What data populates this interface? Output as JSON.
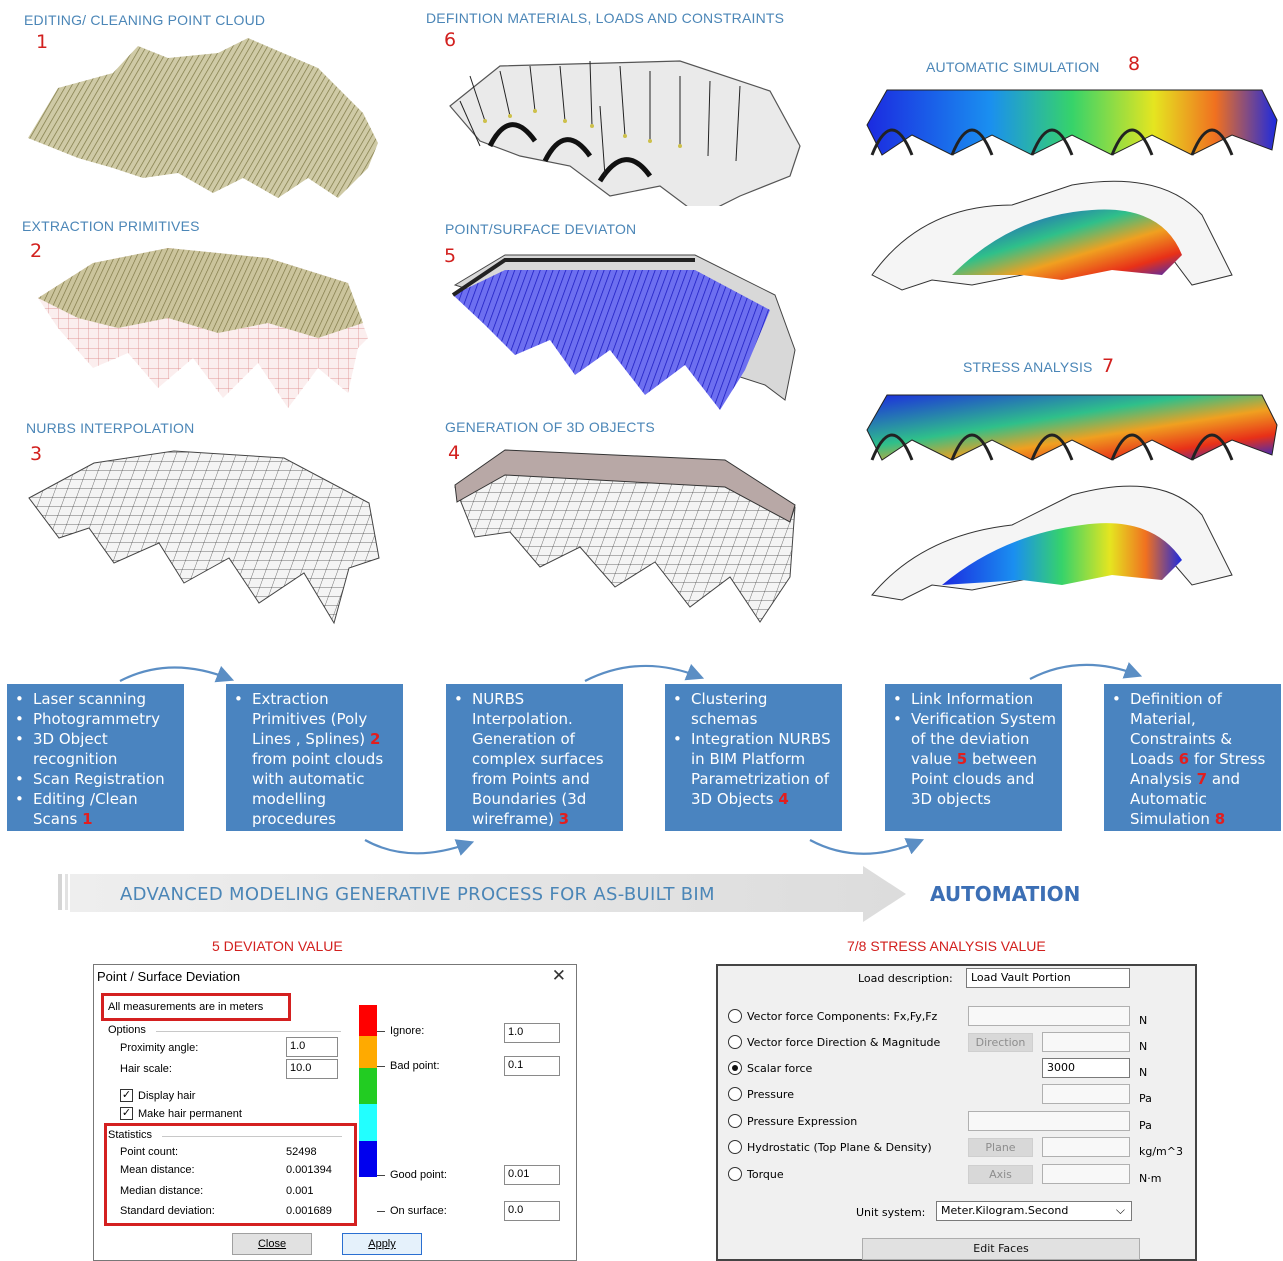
{
  "steps": {
    "s1": {
      "title": "EDITING/ CLEANING POINT CLOUD",
      "num": "1"
    },
    "s2": {
      "title": "EXTRACTION PRIMITIVES",
      "num": "2"
    },
    "s3": {
      "title": "NURBS INTERPOLATION",
      "num": "3"
    },
    "s6": {
      "title": "DEFINTION MATERIALS, LOADS AND CONSTRAINTS",
      "num": "6"
    },
    "s5": {
      "title": "POINT/SURFACE DEVIATON",
      "num": "5"
    },
    "s4": {
      "title": "GENERATION OF 3D OBJECTS",
      "num": "4"
    },
    "s8": {
      "title": "AUTOMATIC SIMULATION",
      "num": "8"
    },
    "s7": {
      "title": "STRESS ANALYSIS",
      "num": "7"
    }
  },
  "flow": {
    "b1": {
      "items": [
        "Laser scanning",
        "Photogrammetry",
        "3D Object recognition",
        "Scan Registration",
        "Editing /Clean Scans"
      ],
      "ref": "1"
    },
    "b2": {
      "text": "Extraction Primitives (Poly Lines , Splines)",
      "ref": "2",
      "text2": "from point clouds with automatic modelling procedures"
    },
    "b3": {
      "text": "NURBS Interpolation. Generation of complex surfaces from Points and Boundaries (3d wireframe)",
      "ref": "3"
    },
    "b4": {
      "text1": "Clustering schemas",
      "text2": "Integration NURBS in BIM Platform Parametrization of 3D Objects",
      "ref": "4"
    },
    "b5": {
      "text1": "Link Information",
      "text2": "Verification System of the deviation value",
      "ref": "5",
      "text3": "between Point clouds and 3D objects"
    },
    "b6": {
      "text1": "Definition of Material, Constraints & Loads",
      "ref1": "6",
      "text2": "for Stress Analysis",
      "ref2": "7",
      "text3": "and Automatic Simulation",
      "ref3": "8"
    }
  },
  "banner": {
    "text": "ADVANCED MODELING GENERATIVE PROCESS FOR AS-BUILT BIM",
    "automation": "AUTOMATION"
  },
  "deviation_title": "5 DEVIATON VALUE",
  "stress_title": "7/8 STRESS ANALYSIS VALUE",
  "deviation": {
    "title": "Point / Surface Deviation",
    "close": "✕",
    "note": "All measurements are in meters",
    "options": "Options",
    "proximity_label": "Proximity angle:",
    "proximity_value": "1.0",
    "hair_label": "Hair scale:",
    "hair_value": "10.0",
    "display_hair": "Display hair",
    "permanent_hair": "Make hair permanent",
    "statistics": "Statistics",
    "stats": [
      {
        "label": "Point count:",
        "value": "52498"
      },
      {
        "label": "Mean distance:",
        "value": "0.001394"
      },
      {
        "label": "Median distance:",
        "value": "0.001"
      },
      {
        "label": "Standard deviation:",
        "value": "0.001689"
      }
    ],
    "ignore_label": "Ignore:",
    "ignore_value": "1.0",
    "bad_label": "Bad point:",
    "bad_value": "0.1",
    "good_label": "Good point:",
    "good_value": "0.01",
    "surface_label": "On surface:",
    "surface_value": "0.0",
    "close_btn": "Close",
    "apply_btn": "Apply",
    "scale_colors": [
      "#ff0000",
      "#ffaa00",
      "#22cc22",
      "#22ffff",
      "#0000ee"
    ]
  },
  "stress": {
    "load_label": "Load description:",
    "load_value": "Load Vault Portion",
    "rows": [
      {
        "label": "Vector force Components: Fx,Fy,Fz",
        "unit": "N",
        "selected": false
      },
      {
        "label": "Vector force Direction & Magnitude",
        "button": "Direction",
        "unit": "N",
        "selected": false
      },
      {
        "label": "Scalar force",
        "value": "3000",
        "unit": "N",
        "selected": true
      },
      {
        "label": "Pressure",
        "unit": "Pa",
        "selected": false
      },
      {
        "label": "Pressure Expression",
        "unit": "Pa",
        "selected": false
      },
      {
        "label": "Hydrostatic (Top Plane & Density)",
        "button": "Plane",
        "unit": "kg/m^3",
        "selected": false
      },
      {
        "label": "Torque",
        "button": "Axis",
        "unit": "N·m",
        "selected": false
      }
    ],
    "unit_label": "Unit system:",
    "unit_value": "Meter.Kilogram.Second",
    "edit_btn": "Edit Faces"
  }
}
